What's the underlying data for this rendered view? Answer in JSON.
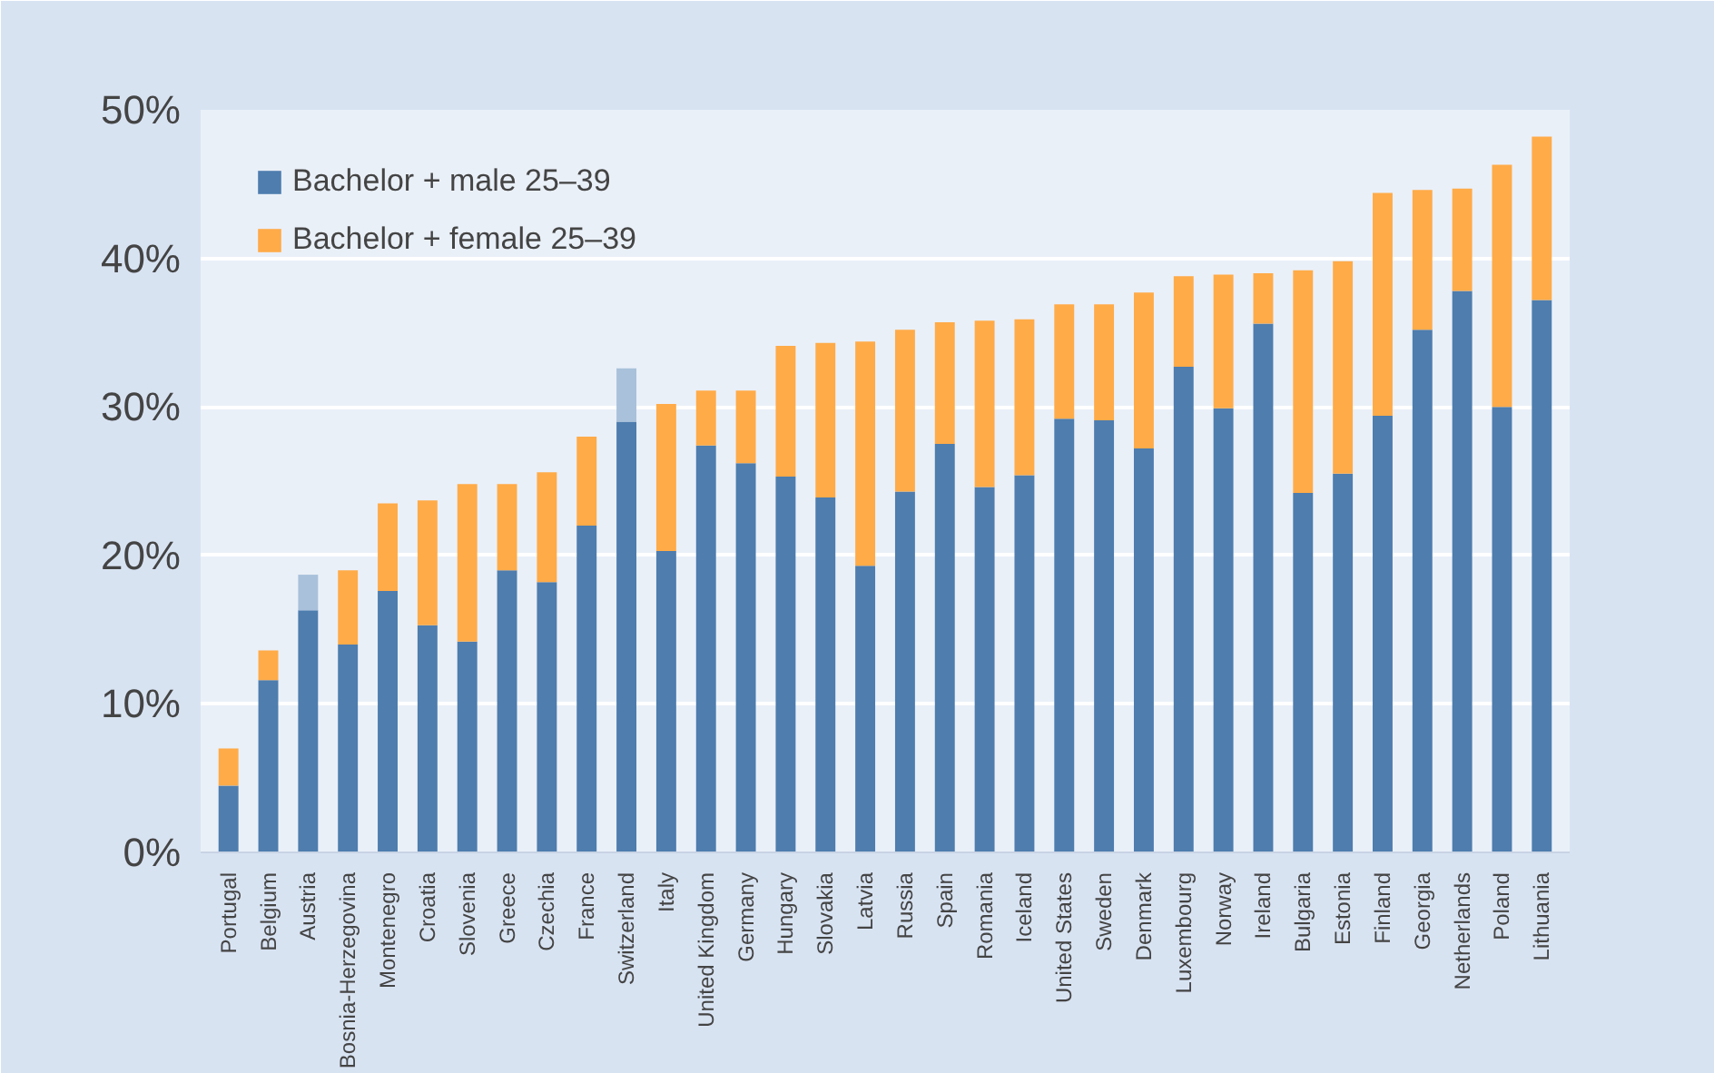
{
  "chart_data": {
    "type": "bar",
    "stacked": true,
    "categories": [
      "Portugal",
      "Belgium",
      "Austria",
      "Bosnia-Herzegovina",
      "Montenegro",
      "Croatia",
      "Slovenia",
      "Greece",
      "Czechia",
      "France",
      "Switzerland",
      "Italy",
      "United Kingdom",
      "Germany",
      "Hungary",
      "Slovakia",
      "Latvia",
      "Russia",
      "Spain",
      "Romania",
      "Iceland",
      "United States",
      "Sweden",
      "Denmark",
      "Luxembourg",
      "Norway",
      "Ireland",
      "Bulgaria",
      "Estonia",
      "Finland",
      "Georgia",
      "Netherlands",
      "Poland",
      "Lithuania"
    ],
    "series": [
      {
        "name": "Bachelor + male 25–39",
        "color": "#4e7dae",
        "values": [
          4.5,
          11.6,
          16.3,
          14.0,
          17.6,
          15.3,
          14.2,
          19.0,
          18.2,
          22.0,
          29.0,
          20.3,
          27.4,
          26.2,
          25.3,
          23.9,
          19.3,
          24.3,
          27.5,
          24.6,
          25.4,
          29.2,
          29.1,
          27.2,
          32.7,
          29.9,
          35.6,
          24.2,
          25.5,
          29.4,
          35.2,
          37.8,
          30.0,
          37.2
        ]
      },
      {
        "name": "Bachelor + female 25–39",
        "color": "#ffab48",
        "colors": [
          "#ffab48",
          "#ffab48",
          "#a9c1da",
          "#ffab48",
          "#ffab48",
          "#ffab48",
          "#ffab48",
          "#ffab48",
          "#ffab48",
          "#ffab48",
          "#a9c1da",
          "#ffab48",
          "#ffab48",
          "#ffab48",
          "#ffab48",
          "#ffab48",
          "#ffab48",
          "#ffab48",
          "#ffab48",
          "#ffab48",
          "#ffab48",
          "#ffab48",
          "#ffab48",
          "#ffab48",
          "#ffab48",
          "#ffab48",
          "#ffab48",
          "#ffab48",
          "#ffab48",
          "#ffab48",
          "#ffab48",
          "#ffab48",
          "#ffab48",
          "#ffab48"
        ],
        "values": [
          2.5,
          2.0,
          2.4,
          5.0,
          5.9,
          8.4,
          10.6,
          5.8,
          7.4,
          6.0,
          3.6,
          9.9,
          3.7,
          4.9,
          8.8,
          10.4,
          15.1,
          10.9,
          8.2,
          11.2,
          10.5,
          7.7,
          7.8,
          10.5,
          6.1,
          9.0,
          3.4,
          15.0,
          14.3,
          15.0,
          9.4,
          6.9,
          16.3,
          11.0
        ]
      }
    ],
    "ylim": [
      0,
      50
    ],
    "yticks": [
      {
        "value": 0,
        "label": "0%"
      },
      {
        "value": 10,
        "label": "10%"
      },
      {
        "value": 20,
        "label": "20%"
      },
      {
        "value": 30,
        "label": "30%"
      },
      {
        "value": 40,
        "label": "40%"
      },
      {
        "value": 50,
        "label": "50%"
      }
    ],
    "grid": "y",
    "legend": "top left"
  }
}
